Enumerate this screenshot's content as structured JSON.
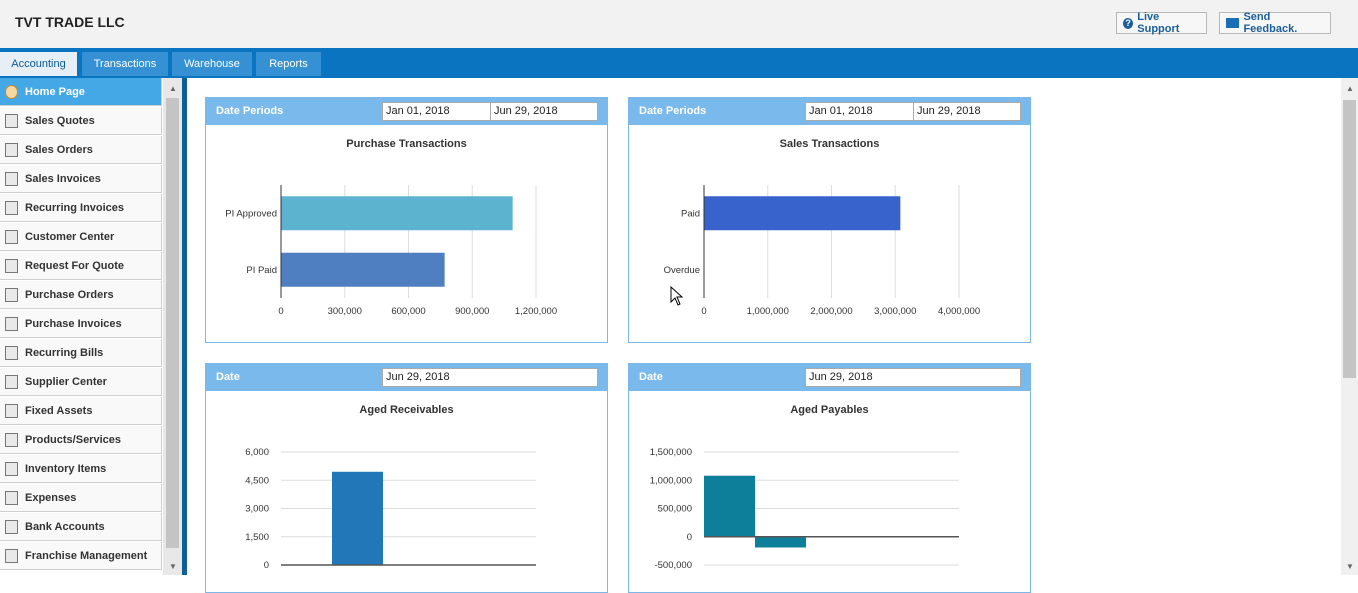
{
  "header": {
    "company": "TVT TRADE LLC",
    "live_support": "Live Support",
    "send_feedback": "Send Feedback."
  },
  "tabs": [
    {
      "label": "Accounting",
      "active": true
    },
    {
      "label": "Transactions",
      "active": false
    },
    {
      "label": "Warehouse",
      "active": false
    },
    {
      "label": "Reports",
      "active": false
    }
  ],
  "sidebar": {
    "items": [
      {
        "label": "Home Page",
        "icon": "home-icon",
        "active": true
      },
      {
        "label": "Sales Quotes",
        "icon": "document-icon"
      },
      {
        "label": "Sales Orders",
        "icon": "document-icon"
      },
      {
        "label": "Sales Invoices",
        "icon": "document-icon"
      },
      {
        "label": "Recurring Invoices",
        "icon": "document-icon"
      },
      {
        "label": "Customer Center",
        "icon": "customer-icon"
      },
      {
        "label": "Request For Quote",
        "icon": "truck-icon"
      },
      {
        "label": "Purchase Orders",
        "icon": "truck-icon"
      },
      {
        "label": "Purchase Invoices",
        "icon": "truck-icon"
      },
      {
        "label": "Recurring Bills",
        "icon": "truck-icon"
      },
      {
        "label": "Supplier Center",
        "icon": "supplier-icon"
      },
      {
        "label": "Fixed Assets",
        "icon": "asset-icon"
      },
      {
        "label": "Products/Services",
        "icon": "truck-icon"
      },
      {
        "label": "Inventory Items",
        "icon": "truck-icon"
      },
      {
        "label": "Expenses",
        "icon": "expense-icon"
      },
      {
        "label": "Bank Accounts",
        "icon": "bank-icon"
      },
      {
        "label": "Franchise Management",
        "icon": "document-icon"
      }
    ]
  },
  "panels": {
    "purchase": {
      "label": "Date Periods",
      "from": "Jan 01, 2018",
      "to": "Jun 29, 2018"
    },
    "sales": {
      "label": "Date Periods",
      "from": "Jan 01, 2018",
      "to": "Jun 29, 2018"
    },
    "receivables": {
      "label": "Date",
      "date": "Jun 29, 2018"
    },
    "payables": {
      "label": "Date",
      "date": "Jun 29, 2018"
    }
  },
  "chart_data": [
    {
      "type": "bar",
      "orientation": "horizontal",
      "title": "Purchase Transactions",
      "categories": [
        "PI Approved",
        "PI Paid"
      ],
      "values": [
        1090000,
        770000
      ],
      "colors": [
        "#5bb3cf",
        "#4f7fc0"
      ],
      "xlim": [
        0,
        1200000
      ],
      "ticks": [
        0,
        300000,
        600000,
        900000,
        1200000
      ],
      "tick_labels": [
        "0",
        "300,000",
        "600,000",
        "900,000",
        "1,200,000"
      ],
      "grid": true
    },
    {
      "type": "bar",
      "orientation": "horizontal",
      "title": "Sales Transactions",
      "categories": [
        "Paid",
        "Overdue"
      ],
      "values": [
        3080000,
        0
      ],
      "colors": [
        "#3862cc",
        "#3862cc"
      ],
      "xlim": [
        0,
        4000000
      ],
      "ticks": [
        0,
        1000000,
        2000000,
        3000000,
        4000000
      ],
      "tick_labels": [
        "0",
        "1,000,000",
        "2,000,000",
        "3,000,000",
        "4,000,000"
      ],
      "grid": true
    },
    {
      "type": "bar",
      "orientation": "vertical",
      "title": "Aged Receivables",
      "values": [
        0,
        4950,
        0,
        0,
        0
      ],
      "colors": [
        "#2277b8"
      ],
      "ylim": [
        0,
        6000
      ],
      "ticks": [
        0,
        1500,
        3000,
        4500,
        6000
      ],
      "tick_labels": [
        "0",
        "1,500",
        "3,000",
        "4,500",
        "6,000"
      ]
    },
    {
      "type": "bar",
      "orientation": "vertical",
      "title": "Aged Payables",
      "values": [
        1080000,
        -190000,
        0,
        0,
        0
      ],
      "colors": [
        "#0e7f9a"
      ],
      "ylim": [
        -500000,
        1500000
      ],
      "ticks": [
        -500000,
        0,
        500000,
        1000000,
        1500000
      ],
      "tick_labels": [
        "-500,000",
        "0",
        "500,000",
        "1,000,000",
        "1,500,000"
      ]
    }
  ]
}
